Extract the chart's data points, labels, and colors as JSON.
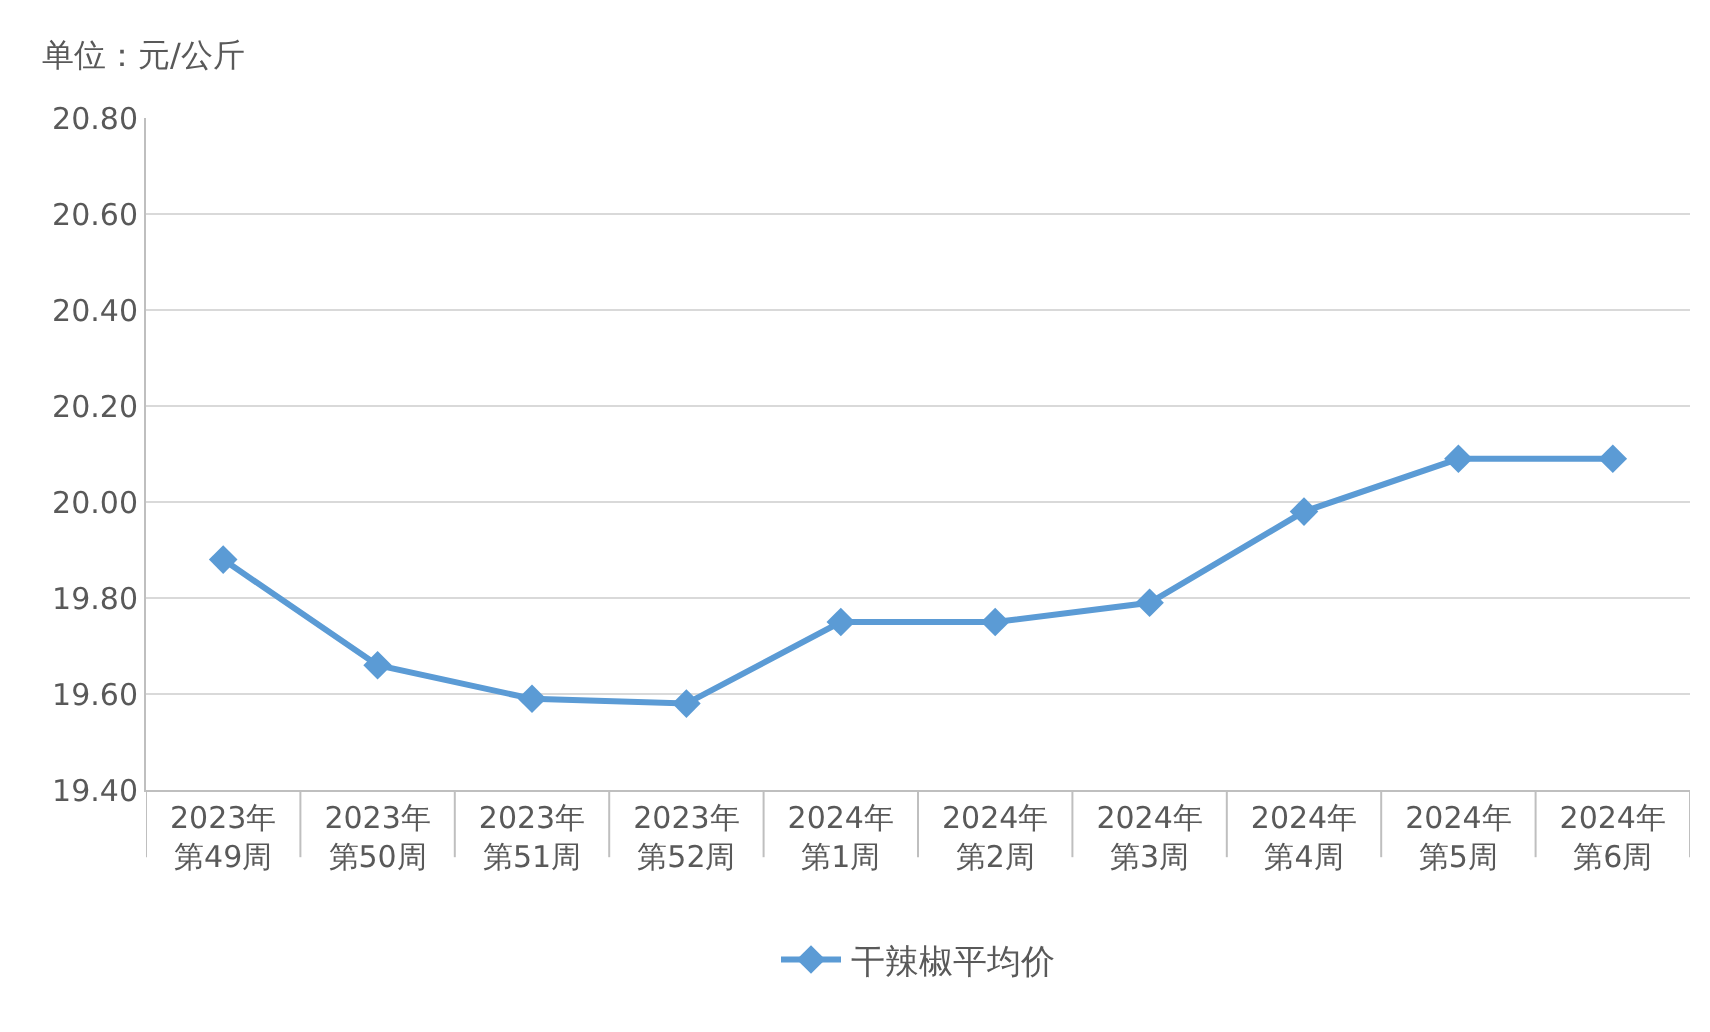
{
  "chart_data": {
    "type": "line",
    "ylabel": "单位：元/公斤",
    "categories": [
      "2023年第49周",
      "2023年第50周",
      "2023年第51周",
      "2023年第52周",
      "2024年第1周",
      "2024年第2周",
      "2024年第3周",
      "2024年第4周",
      "2024年第5周",
      "2024年第6周"
    ],
    "series": [
      {
        "name": "干辣椒平均价",
        "color": "#5b9bd5",
        "values": [
          19.88,
          19.66,
          19.59,
          19.58,
          19.75,
          19.75,
          19.79,
          19.98,
          20.09,
          20.09
        ]
      }
    ],
    "ylim": [
      19.4,
      20.8
    ],
    "yticks": [
      {
        "value": 19.4,
        "label": "19.40"
      },
      {
        "value": 19.6,
        "label": "19.60"
      },
      {
        "value": 19.8,
        "label": "19.80"
      },
      {
        "value": 20.0,
        "label": "20.00"
      },
      {
        "value": 20.2,
        "label": "20.20"
      },
      {
        "value": 20.4,
        "label": "20.40"
      },
      {
        "value": 20.6,
        "label": "20.60"
      },
      {
        "value": 20.8,
        "label": "20.80"
      }
    ],
    "grid": "y",
    "legend": "bottom",
    "marker": "diamond",
    "line_style": "solid"
  }
}
